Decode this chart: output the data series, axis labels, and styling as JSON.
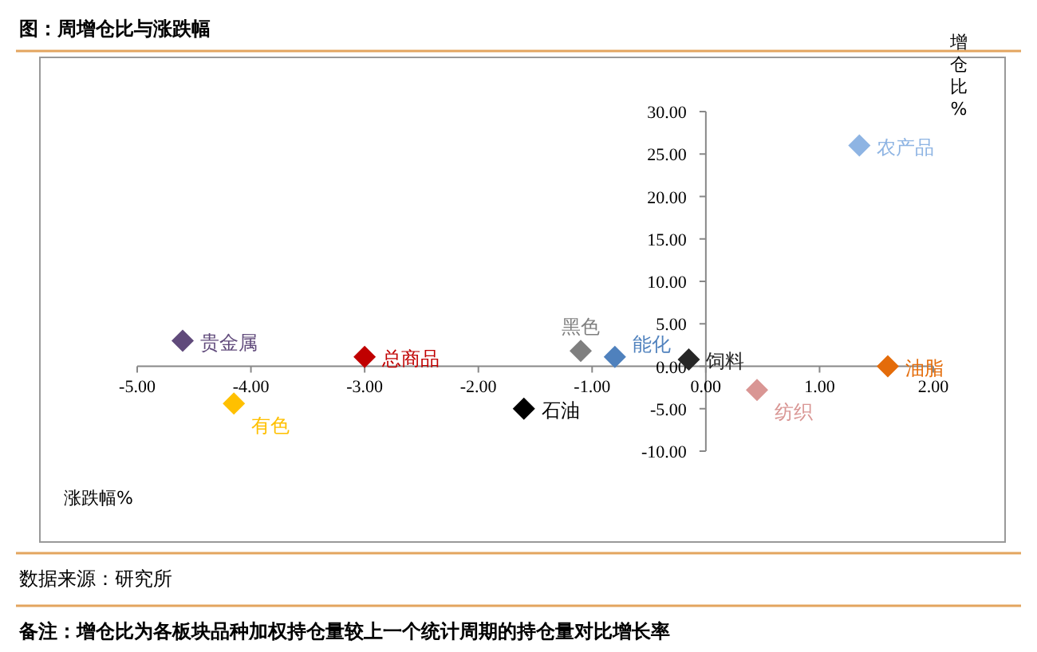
{
  "chart_data": {
    "type": "scatter",
    "title": "图：周增仓比与涨跌幅",
    "xlabel": "涨跌幅%",
    "ylabel": "增仓比%",
    "xlim": [
      -5,
      2
    ],
    "ylim": [
      -10,
      30
    ],
    "xticks": [
      {
        "value": -5,
        "label": "-5.00"
      },
      {
        "value": -4,
        "label": "-4.00"
      },
      {
        "value": -3,
        "label": "-3.00"
      },
      {
        "value": -2,
        "label": "-2.00"
      },
      {
        "value": -1,
        "label": "-1.00"
      },
      {
        "value": 0,
        "label": "0.00"
      },
      {
        "value": 1,
        "label": "1.00"
      },
      {
        "value": 2,
        "label": "2.00"
      }
    ],
    "yticks": [
      {
        "value": -10,
        "label": "-10.00"
      },
      {
        "value": -5,
        "label": "-5.00"
      },
      {
        "value": 0,
        "label": "0.00"
      },
      {
        "value": 5,
        "label": "5.00"
      },
      {
        "value": 10,
        "label": "10.00"
      },
      {
        "value": 15,
        "label": "15.00"
      },
      {
        "value": 20,
        "label": "20.00"
      },
      {
        "value": 25,
        "label": "25.00"
      },
      {
        "value": 30,
        "label": "30.00"
      }
    ],
    "marker": "diamond",
    "grid": false,
    "series": [
      {
        "name": "贵金属",
        "color": "#604a7b",
        "x": [
          -4.6
        ],
        "values": [
          3.0
        ]
      },
      {
        "name": "总商品",
        "color": "#c00000",
        "x": [
          -3.0
        ],
        "values": [
          1.1
        ]
      },
      {
        "name": "有色",
        "color": "#ffc000",
        "x": [
          -4.15
        ],
        "values": [
          -4.4
        ]
      },
      {
        "name": "石油",
        "color": "#000000",
        "x": [
          -1.6
        ],
        "values": [
          -5.0
        ]
      },
      {
        "name": "黑色",
        "color": "#7f7f7f",
        "x": [
          -1.1
        ],
        "values": [
          1.8
        ]
      },
      {
        "name": "能化",
        "color": "#4f81bd",
        "x": [
          -0.8
        ],
        "values": [
          1.1
        ]
      },
      {
        "name": "饲料",
        "color": "#262626",
        "x": [
          -0.15
        ],
        "values": [
          0.8
        ]
      },
      {
        "name": "纺织",
        "color": "#d99694",
        "x": [
          0.45
        ],
        "values": [
          -2.8
        ]
      },
      {
        "name": "油脂",
        "color": "#e46c0a",
        "x": [
          1.6
        ],
        "values": [
          0.0
        ]
      },
      {
        "name": "农产品",
        "color": "#8eb4e3",
        "x": [
          1.35
        ],
        "values": [
          26.0
        ]
      }
    ],
    "annotations": [
      "数据来源：研究所",
      "备注：增仓比为各板块品种加权持仓量较上一个统计周期的持仓量对比增长率"
    ]
  }
}
